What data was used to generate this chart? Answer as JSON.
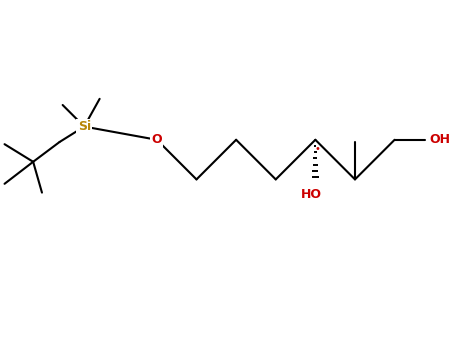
{
  "bg_color": "#ffffff",
  "bond_color": "#000000",
  "si_color": "#b8860b",
  "o_color": "#cc0000",
  "ho_color": "#cc0000",
  "si_label": "Si",
  "o_label": "O",
  "ho_label1": "HO",
  "ho_label2": "OH",
  "fig_width": 4.55,
  "fig_height": 3.5,
  "dpi": 100,
  "lw": 1.5,
  "xlim": [
    0,
    10
  ],
  "ylim": [
    0,
    7.7
  ]
}
